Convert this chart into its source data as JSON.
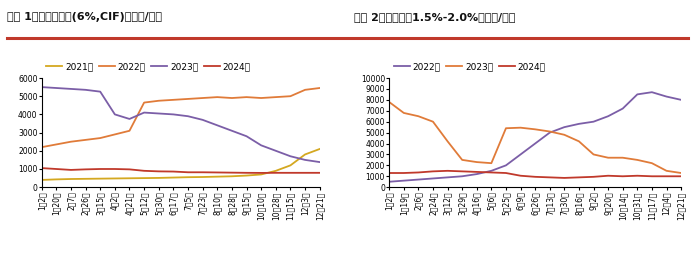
{
  "chart1_title": "图表 1：锂辉石精矿(6%,CIF)（美元/吨）",
  "chart2_title": "图表 2：锂云母（1.5%-2.0%）（元/吨）",
  "chart1_legend": [
    "2021年",
    "2022年",
    "2023年",
    "2024年"
  ],
  "chart2_legend": [
    "2022年",
    "2023年",
    "2024年"
  ],
  "chart1_colors": [
    "#d4a820",
    "#e07b39",
    "#7b5ea7",
    "#c0392b"
  ],
  "chart2_colors": [
    "#7b5ea7",
    "#e07b39",
    "#c0392b"
  ],
  "chart1_xticks": [
    "1月2日",
    "1月20日",
    "2月7日",
    "2月26日",
    "3月15日",
    "4月2日",
    "4月21日",
    "5月12日",
    "5月30日",
    "6月17日",
    "7月5日",
    "7月23日",
    "8月10日",
    "8月28日",
    "9月15日",
    "10月10日",
    "10月28日",
    "11月15日",
    "12月3日",
    "12月21日"
  ],
  "chart2_xticks": [
    "1月2日",
    "1月19日",
    "2月6日",
    "2月24日",
    "3月12日",
    "3月29日",
    "4月16日",
    "5月6日",
    "5月25日",
    "6月9日",
    "6月26日",
    "7月13日",
    "7月30日",
    "8月16日",
    "9月2日",
    "9月20日",
    "10月14日",
    "10月31日",
    "11月17日",
    "12月4日",
    "12月21日"
  ],
  "chart1_ylim": [
    0,
    6000
  ],
  "chart2_ylim": [
    0,
    10000
  ],
  "chart1_yticks": [
    0,
    1000,
    2000,
    3000,
    4000,
    5000,
    6000
  ],
  "chart2_yticks": [
    0,
    1000,
    2000,
    3000,
    4000,
    5000,
    6000,
    7000,
    8000,
    9000,
    10000
  ],
  "chart1_2021": [
    400,
    430,
    450,
    460,
    470,
    480,
    490,
    500,
    510,
    530,
    550,
    560,
    580,
    600,
    640,
    700,
    900,
    1200,
    1800,
    2100
  ],
  "chart1_2022": [
    2200,
    2350,
    2500,
    2600,
    2700,
    2900,
    3100,
    4650,
    4750,
    4800,
    4850,
    4900,
    4950,
    4900,
    4950,
    4900,
    4950,
    5000,
    5350,
    5450
  ],
  "chart1_2023": [
    5500,
    5450,
    5400,
    5350,
    5250,
    4000,
    3750,
    4100,
    4050,
    4000,
    3900,
    3700,
    3400,
    3100,
    2800,
    2300,
    2000,
    1700,
    1500,
    1380
  ],
  "chart1_2024": [
    1050,
    1000,
    950,
    980,
    1000,
    1000,
    980,
    900,
    870,
    860,
    820,
    820,
    810,
    800,
    790,
    785,
    790,
    790,
    790,
    790
  ],
  "chart2_2022": [
    500,
    600,
    700,
    800,
    900,
    1000,
    1200,
    1500,
    2000,
    3000,
    4000,
    5000,
    5500,
    5800,
    6000,
    6500,
    7200,
    8500,
    8700,
    8300,
    8000
  ],
  "chart2_2023": [
    7800,
    6800,
    6500,
    6000,
    4200,
    2500,
    2300,
    2200,
    5400,
    5450,
    5300,
    5100,
    4800,
    4200,
    3000,
    2700,
    2700,
    2500,
    2200,
    1500,
    1300
  ],
  "chart2_2024": [
    1300,
    1300,
    1350,
    1450,
    1500,
    1450,
    1400,
    1350,
    1300,
    1050,
    950,
    900,
    850,
    900,
    950,
    1050,
    1000,
    1050,
    1000,
    1000,
    1000
  ],
  "bg_color": "#f0f0f0",
  "separator_color": "#c0392b",
  "title_fontsize": 8.0,
  "legend_fontsize": 6.5,
  "tick_fontsize": 5.5,
  "linewidth": 1.3
}
